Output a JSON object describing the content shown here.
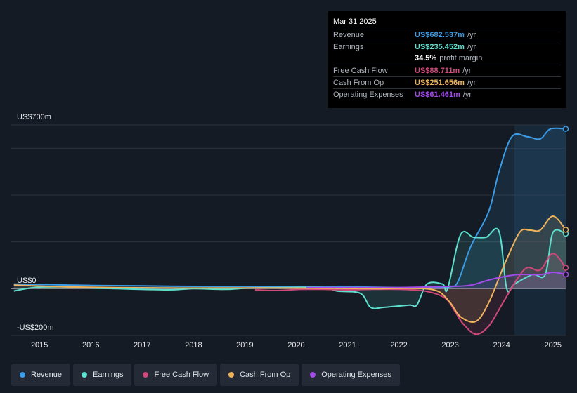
{
  "tooltip": {
    "date": "Mar 31 2025",
    "rows": [
      {
        "label": "Revenue",
        "value": "US$682.537m",
        "unit": "/yr",
        "color": "#3b9ce8"
      },
      {
        "label": "Earnings",
        "value": "US$235.452m",
        "unit": "/yr",
        "color": "#5ee0cf"
      },
      {
        "label": "",
        "value": "34.5%",
        "unit": "profit margin",
        "color": "#ffffff"
      },
      {
        "label": "Free Cash Flow",
        "value": "US$88.711m",
        "unit": "/yr",
        "color": "#d2487a"
      },
      {
        "label": "Cash From Op",
        "value": "US$251.656m",
        "unit": "/yr",
        "color": "#f0b35b"
      },
      {
        "label": "Operating Expenses",
        "value": "US$61.461m",
        "unit": "/yr",
        "color": "#a24be8"
      }
    ]
  },
  "legend": [
    {
      "label": "Revenue",
      "color": "#3b9ce8"
    },
    {
      "label": "Earnings",
      "color": "#5ee0cf"
    },
    {
      "label": "Free Cash Flow",
      "color": "#d2487a"
    },
    {
      "label": "Cash From Op",
      "color": "#f0b35b"
    },
    {
      "label": "Operating Expenses",
      "color": "#a24be8"
    }
  ],
  "chart_data": {
    "type": "line",
    "title": "",
    "xlabel": "",
    "ylabel": "",
    "unit": "US$ m",
    "y_tick_labels": [
      "US$700m",
      "US$0",
      "-US$200m"
    ],
    "x_tick_labels": [
      "2015",
      "2016",
      "2017",
      "2018",
      "2019",
      "2020",
      "2021",
      "2022",
      "2023",
      "2024",
      "2025"
    ],
    "xlim": [
      2014.45,
      2025.25
    ],
    "ylim": [
      -200,
      700
    ],
    "grid": true,
    "highlight_from": 2024.25,
    "series": [
      {
        "name": "Revenue",
        "color": "#3b9ce8",
        "points": [
          [
            2014.5,
            20
          ],
          [
            2015,
            18
          ],
          [
            2016,
            14
          ],
          [
            2017,
            12
          ],
          [
            2018,
            10
          ],
          [
            2019,
            10
          ],
          [
            2020,
            10
          ],
          [
            2021,
            8
          ],
          [
            2022,
            5
          ],
          [
            2022.8,
            5
          ],
          [
            2023.0,
            8
          ],
          [
            2023.15,
            30
          ],
          [
            2023.4,
            180
          ],
          [
            2023.75,
            330
          ],
          [
            2023.95,
            500
          ],
          [
            2024.2,
            650
          ],
          [
            2024.5,
            650
          ],
          [
            2024.75,
            640
          ],
          [
            2024.95,
            683
          ],
          [
            2025.25,
            683
          ]
        ]
      },
      {
        "name": "Earnings",
        "color": "#5ee0cf",
        "points": [
          [
            2014.5,
            -10
          ],
          [
            2014.9,
            5
          ],
          [
            2015.5,
            8
          ],
          [
            2016,
            3
          ],
          [
            2016.5,
            0
          ],
          [
            2017.5,
            -5
          ],
          [
            2018,
            0
          ],
          [
            2018.6,
            -3
          ],
          [
            2019.1,
            3
          ],
          [
            2019.8,
            5
          ],
          [
            2020.5,
            5
          ],
          [
            2020.8,
            -10
          ],
          [
            2021.25,
            -20
          ],
          [
            2021.45,
            -80
          ],
          [
            2021.7,
            -80
          ],
          [
            2022.2,
            -70
          ],
          [
            2022.35,
            -70
          ],
          [
            2022.55,
            20
          ],
          [
            2022.85,
            20
          ],
          [
            2022.95,
            0
          ],
          [
            2023.2,
            230
          ],
          [
            2023.45,
            220
          ],
          [
            2023.7,
            220
          ],
          [
            2023.95,
            245
          ],
          [
            2024.1,
            0
          ],
          [
            2024.25,
            20
          ],
          [
            2024.6,
            60
          ],
          [
            2024.85,
            60
          ],
          [
            2025.0,
            240
          ],
          [
            2025.25,
            235
          ]
        ]
      },
      {
        "name": "Free Cash Flow",
        "color": "#d2487a",
        "points": [
          [
            2019.2,
            -5
          ],
          [
            2019.6,
            -8
          ],
          [
            2020.1,
            -3
          ],
          [
            2020.5,
            -3
          ],
          [
            2021.0,
            -5
          ],
          [
            2021.5,
            -3
          ],
          [
            2022.0,
            -3
          ],
          [
            2022.5,
            -10
          ],
          [
            2022.9,
            -40
          ],
          [
            2023.1,
            -100
          ],
          [
            2023.25,
            -150
          ],
          [
            2023.5,
            -195
          ],
          [
            2023.75,
            -160
          ],
          [
            2024.0,
            -70
          ],
          [
            2024.3,
            40
          ],
          [
            2024.5,
            90
          ],
          [
            2024.75,
            80
          ],
          [
            2025.0,
            150
          ],
          [
            2025.25,
            89
          ]
        ]
      },
      {
        "name": "Cash From Op",
        "color": "#f0b35b",
        "points": [
          [
            2014.5,
            15
          ],
          [
            2015.5,
            8
          ],
          [
            2016.5,
            5
          ],
          [
            2017.5,
            3
          ],
          [
            2018.5,
            3
          ],
          [
            2019.5,
            3
          ],
          [
            2020.5,
            2
          ],
          [
            2021.5,
            0
          ],
          [
            2022.3,
            2
          ],
          [
            2022.75,
            -10
          ],
          [
            2023.0,
            -60
          ],
          [
            2023.2,
            -120
          ],
          [
            2023.5,
            -140
          ],
          [
            2023.75,
            -60
          ],
          [
            2024.05,
            100
          ],
          [
            2024.35,
            240
          ],
          [
            2024.55,
            250
          ],
          [
            2024.75,
            250
          ],
          [
            2025.0,
            310
          ],
          [
            2025.25,
            252
          ]
        ]
      },
      {
        "name": "Operating Expenses",
        "color": "#a24be8",
        "points": [
          [
            2020.2,
            5
          ],
          [
            2021.0,
            5
          ],
          [
            2022.0,
            5
          ],
          [
            2023.0,
            10
          ],
          [
            2023.4,
            15
          ],
          [
            2023.8,
            40
          ],
          [
            2024.3,
            60
          ],
          [
            2024.75,
            60
          ],
          [
            2025.0,
            70
          ],
          [
            2025.25,
            61
          ]
        ]
      }
    ]
  }
}
